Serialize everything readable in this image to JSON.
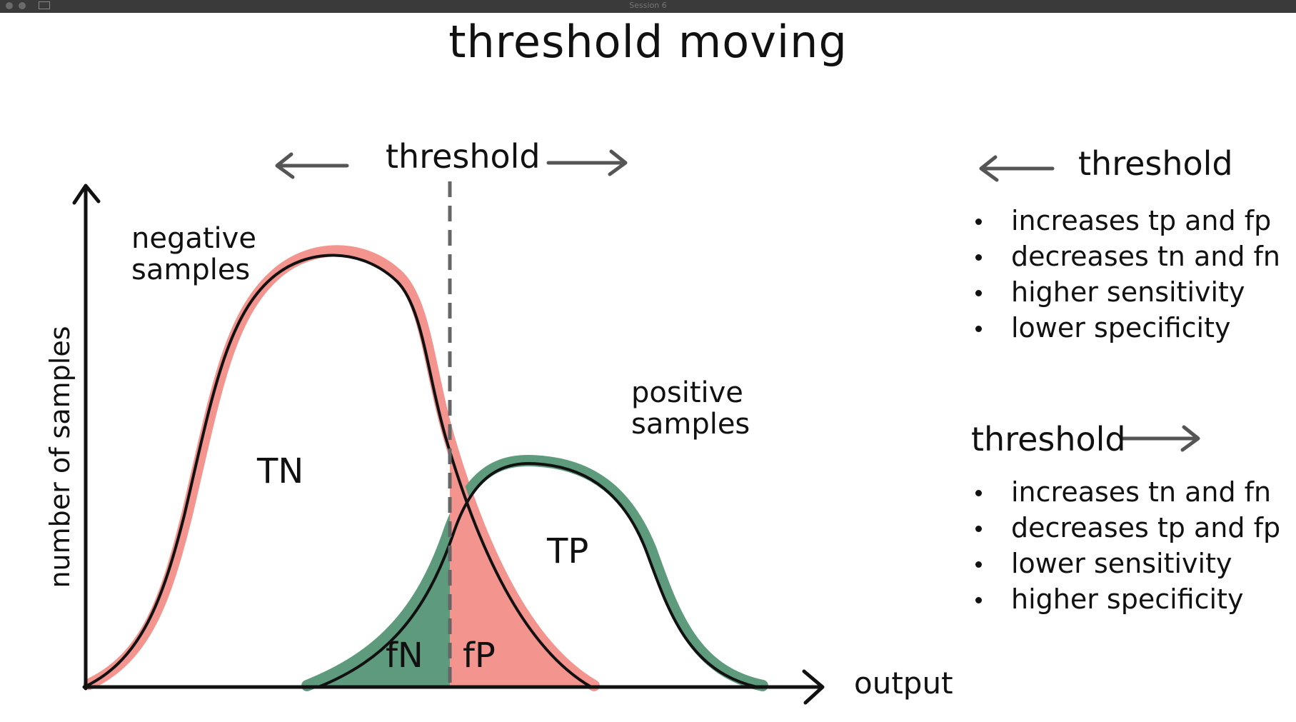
{
  "window": {
    "title": "Session 6"
  },
  "title": "threshold moving",
  "diagram": {
    "threshold_label": "threshold",
    "negative_label": "negative\nsamples",
    "positive_label": "positive\nsamples",
    "y_axis_label": "number of samples",
    "x_axis_label": "output",
    "regions": {
      "tn": "TN",
      "tp": "TP",
      "fn": "fN",
      "fp": "fP"
    },
    "colors": {
      "negative": "#f3958e",
      "positive": "#5e9b7d",
      "ink": "#111111",
      "arrow": "#555555",
      "dashed": "#666666"
    }
  },
  "panel_left": {
    "heading": "threshold",
    "arrow_direction": "left",
    "items": [
      "increases tp and fp",
      "decreases tn and fn",
      "higher sensitivity",
      "lower specificity"
    ]
  },
  "panel_right": {
    "heading": "threshold",
    "arrow_direction": "right",
    "items": [
      "increases tn and fn",
      "decreases tp and fp",
      "lower sensitivity",
      "higher specificity"
    ]
  }
}
